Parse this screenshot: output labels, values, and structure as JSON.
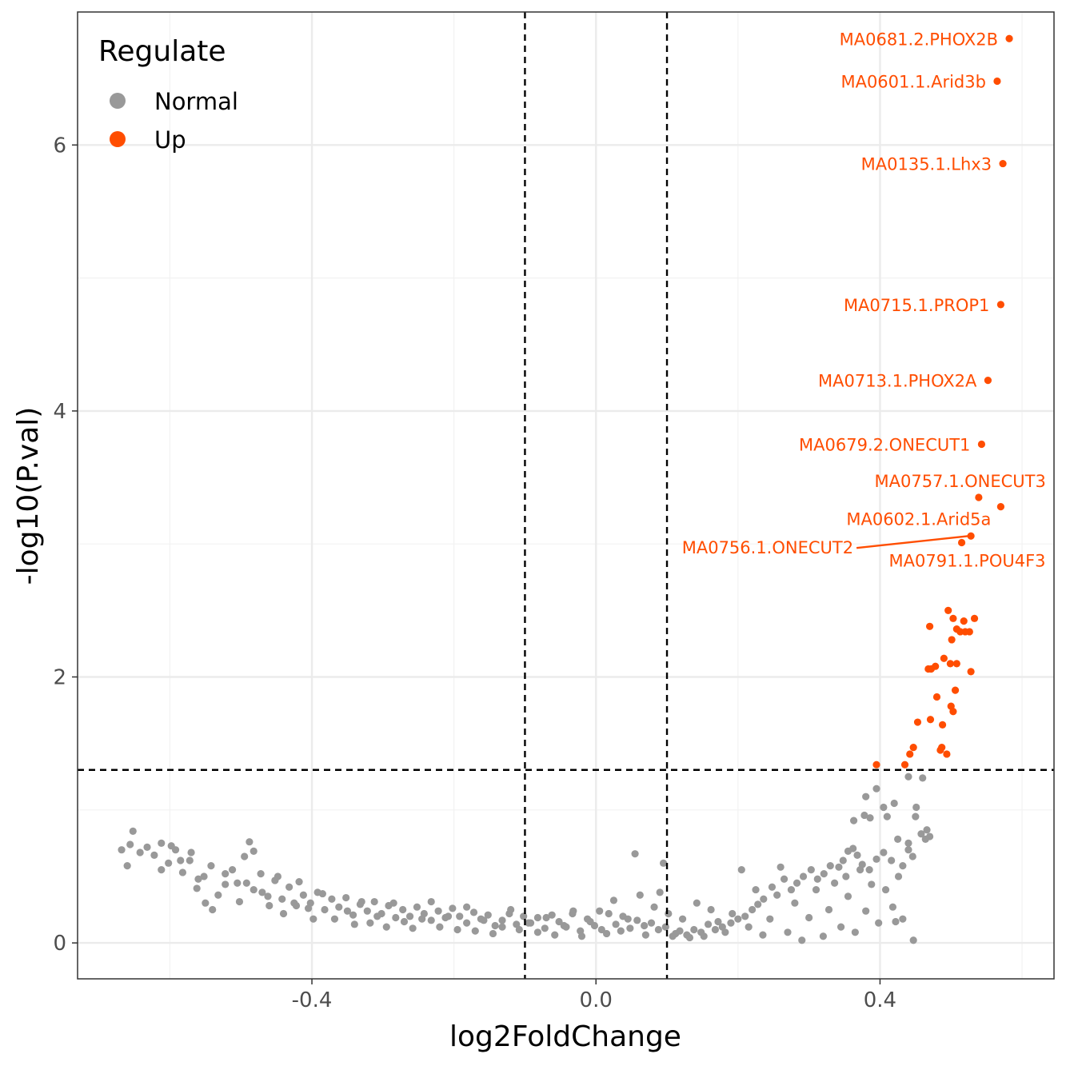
{
  "chart_data": {
    "type": "scatter",
    "title": "",
    "xlabel": "log2FoldChange",
    "ylabel": "-log10(P.val)",
    "xlim": [
      -0.73,
      0.645
    ],
    "ylim": [
      -0.27,
      7.0
    ],
    "x_ticks": [
      -0.4,
      0.0,
      0.4
    ],
    "x_tick_labels": [
      "-0.4",
      "0.0",
      "0.4"
    ],
    "y_ticks": [
      0,
      2,
      4,
      6
    ],
    "y_tick_labels": [
      "0",
      "2",
      "4",
      "6"
    ],
    "grid": true,
    "thresholds": {
      "log2fc": [
        -0.1,
        0.1
      ],
      "neg_log10_p": 1.301
    },
    "legend": {
      "title": "Regulate",
      "placement": "top-left",
      "entries": [
        {
          "label": "Normal",
          "color": "#999999"
        },
        {
          "label": "Up",
          "color": "#FF4D00"
        }
      ]
    },
    "colors": {
      "Normal": "#999999",
      "Up": "#FF4D00"
    },
    "labeled_points": [
      {
        "label": "MA0681.2.PHOX2B",
        "x": 0.582,
        "y": 6.8
      },
      {
        "label": "MA0601.1.Arid3b",
        "x": 0.565,
        "y": 6.48
      },
      {
        "label": "MA0135.1.Lhx3",
        "x": 0.573,
        "y": 5.86
      },
      {
        "label": "MA0715.1.PROP1",
        "x": 0.57,
        "y": 4.8
      },
      {
        "label": "MA0713.1.PHOX2A",
        "x": 0.552,
        "y": 4.23
      },
      {
        "label": "MA0679.2.ONECUT1",
        "x": 0.543,
        "y": 3.75
      },
      {
        "label": "MA0757.1.ONECUT3",
        "x": 0.539,
        "y": 3.35
      },
      {
        "label": "MA0602.1.Arid5a",
        "x": 0.57,
        "y": 3.28
      },
      {
        "label": "MA0756.1.ONECUT2",
        "x": 0.528,
        "y": 3.06
      },
      {
        "label": "MA0791.1.POU4F3",
        "x": 0.515,
        "y": 3.01
      }
    ],
    "up_points": [
      [
        0.496,
        2.5
      ],
      [
        0.503,
        2.44
      ],
      [
        0.533,
        2.44
      ],
      [
        0.518,
        2.42
      ],
      [
        0.47,
        2.38
      ],
      [
        0.508,
        2.36
      ],
      [
        0.52,
        2.34
      ],
      [
        0.513,
        2.34
      ],
      [
        0.526,
        2.34
      ],
      [
        0.501,
        2.28
      ],
      [
        0.49,
        2.14
      ],
      [
        0.499,
        2.1
      ],
      [
        0.508,
        2.1
      ],
      [
        0.478,
        2.08
      ],
      [
        0.472,
        2.06
      ],
      [
        0.468,
        2.06
      ],
      [
        0.528,
        2.04
      ],
      [
        0.506,
        1.9
      ],
      [
        0.48,
        1.85
      ],
      [
        0.5,
        1.78
      ],
      [
        0.503,
        1.74
      ],
      [
        0.471,
        1.68
      ],
      [
        0.488,
        1.64
      ],
      [
        0.453,
        1.66
      ],
      [
        0.447,
        1.47
      ],
      [
        0.487,
        1.47
      ],
      [
        0.485,
        1.45
      ],
      [
        0.494,
        1.42
      ],
      [
        0.442,
        1.42
      ],
      [
        0.435,
        1.34
      ],
      [
        0.395,
        1.34
      ]
    ],
    "normal_points_note_free": true,
    "normal_points": [
      [
        0.447,
        0.02
      ],
      [
        0.432,
        0.18
      ],
      [
        0.422,
        0.16
      ],
      [
        0.466,
        0.85
      ],
      [
        0.47,
        0.8
      ],
      [
        0.458,
        0.82
      ],
      [
        0.464,
        0.78
      ],
      [
        0.45,
        0.95
      ],
      [
        0.451,
        1.02
      ],
      [
        0.44,
        1.25
      ],
      [
        0.46,
        1.24
      ],
      [
        0.395,
        1.16
      ],
      [
        0.405,
        1.02
      ],
      [
        0.41,
        0.95
      ],
      [
        0.378,
        0.96
      ],
      [
        0.363,
        0.92
      ],
      [
        0.38,
        1.1
      ],
      [
        0.42,
        1.05
      ],
      [
        0.386,
        0.94
      ],
      [
        0.395,
        0.63
      ],
      [
        0.405,
        0.68
      ],
      [
        0.416,
        0.62
      ],
      [
        0.425,
        0.78
      ],
      [
        0.44,
        0.75
      ],
      [
        0.432,
        0.58
      ],
      [
        0.44,
        0.7
      ],
      [
        0.446,
        0.65
      ],
      [
        0.362,
        0.71
      ],
      [
        0.368,
        0.66
      ],
      [
        0.355,
        0.69
      ],
      [
        0.348,
        0.62
      ],
      [
        0.375,
        0.59
      ],
      [
        0.385,
        0.55
      ],
      [
        0.342,
        0.57
      ],
      [
        0.352,
        0.5
      ],
      [
        0.33,
        0.58
      ],
      [
        0.321,
        0.52
      ],
      [
        0.312,
        0.48
      ],
      [
        0.303,
        0.55
      ],
      [
        0.292,
        0.5
      ],
      [
        0.283,
        0.45
      ],
      [
        0.275,
        0.4
      ],
      [
        0.265,
        0.48
      ],
      [
        0.255,
        0.36
      ],
      [
        0.248,
        0.42
      ],
      [
        0.236,
        0.33
      ],
      [
        0.228,
        0.29
      ],
      [
        0.22,
        0.25
      ],
      [
        0.21,
        0.2
      ],
      [
        0.2,
        0.18
      ],
      [
        0.19,
        0.15
      ],
      [
        0.178,
        0.12
      ],
      [
        0.168,
        0.1
      ],
      [
        0.158,
        0.14
      ],
      [
        0.148,
        0.08
      ],
      [
        0.138,
        0.1
      ],
      [
        0.128,
        0.06
      ],
      [
        0.118,
        0.09
      ],
      [
        0.108,
        0.05
      ],
      [
        0.098,
        0.12
      ],
      [
        0.088,
        0.1
      ],
      [
        0.078,
        0.15
      ],
      [
        0.068,
        0.13
      ],
      [
        0.058,
        0.17
      ],
      [
        0.048,
        0.11
      ],
      [
        0.038,
        0.2
      ],
      [
        0.028,
        0.14
      ],
      [
        0.018,
        0.22
      ],
      [
        0.008,
        0.1
      ],
      [
        -0.002,
        0.13
      ],
      [
        -0.012,
        0.18
      ],
      [
        -0.022,
        0.09
      ],
      [
        -0.032,
        0.24
      ],
      [
        -0.042,
        0.12
      ],
      [
        -0.052,
        0.16
      ],
      [
        -0.062,
        0.21
      ],
      [
        -0.072,
        0.11
      ],
      [
        -0.082,
        0.19
      ],
      [
        -0.092,
        0.15
      ],
      [
        -0.102,
        0.2
      ],
      [
        -0.112,
        0.14
      ],
      [
        -0.122,
        0.22
      ],
      [
        -0.132,
        0.17
      ],
      [
        -0.142,
        0.13
      ],
      [
        -0.152,
        0.21
      ],
      [
        -0.162,
        0.18
      ],
      [
        -0.172,
        0.23
      ],
      [
        -0.182,
        0.15
      ],
      [
        -0.192,
        0.2
      ],
      [
        -0.202,
        0.26
      ],
      [
        -0.212,
        0.19
      ],
      [
        -0.222,
        0.24
      ],
      [
        -0.232,
        0.17
      ],
      [
        -0.242,
        0.22
      ],
      [
        -0.252,
        0.27
      ],
      [
        -0.262,
        0.2
      ],
      [
        -0.272,
        0.25
      ],
      [
        -0.282,
        0.19
      ],
      [
        -0.292,
        0.28
      ],
      [
        -0.302,
        0.22
      ],
      [
        -0.312,
        0.31
      ],
      [
        -0.322,
        0.24
      ],
      [
        -0.332,
        0.29
      ],
      [
        -0.342,
        0.21
      ],
      [
        -0.352,
        0.34
      ],
      [
        -0.362,
        0.27
      ],
      [
        -0.372,
        0.33
      ],
      [
        -0.382,
        0.25
      ],
      [
        -0.392,
        0.38
      ],
      [
        -0.402,
        0.3
      ],
      [
        -0.412,
        0.36
      ],
      [
        -0.422,
        0.28
      ],
      [
        -0.432,
        0.42
      ],
      [
        -0.442,
        0.33
      ],
      [
        -0.452,
        0.47
      ],
      [
        -0.462,
        0.35
      ],
      [
        -0.472,
        0.52
      ],
      [
        -0.482,
        0.4
      ],
      [
        -0.492,
        0.45
      ],
      [
        -0.502,
        0.31
      ],
      [
        -0.512,
        0.55
      ],
      [
        -0.522,
        0.44
      ],
      [
        -0.532,
        0.36
      ],
      [
        -0.542,
        0.58
      ],
      [
        -0.552,
        0.5
      ],
      [
        -0.562,
        0.41
      ],
      [
        -0.572,
        0.62
      ],
      [
        -0.582,
        0.53
      ],
      [
        -0.592,
        0.7
      ],
      [
        -0.602,
        0.6
      ],
      [
        -0.612,
        0.75
      ],
      [
        -0.622,
        0.66
      ],
      [
        -0.632,
        0.72
      ],
      [
        -0.642,
        0.68
      ],
      [
        -0.652,
        0.84
      ],
      [
        -0.656,
        0.74
      ],
      [
        -0.66,
        0.58
      ],
      [
        -0.668,
        0.7
      ],
      [
        -0.612,
        0.55
      ],
      [
        -0.598,
        0.73
      ],
      [
        -0.585,
        0.62
      ],
      [
        -0.57,
        0.68
      ],
      [
        -0.56,
        0.48
      ],
      [
        -0.55,
        0.3
      ],
      [
        -0.54,
        0.25
      ],
      [
        -0.522,
        0.52
      ],
      [
        -0.505,
        0.45
      ],
      [
        -0.495,
        0.65
      ],
      [
        -0.488,
        0.76
      ],
      [
        -0.482,
        0.69
      ],
      [
        -0.47,
        0.38
      ],
      [
        -0.46,
        0.28
      ],
      [
        -0.448,
        0.5
      ],
      [
        -0.44,
        0.22
      ],
      [
        -0.425,
        0.3
      ],
      [
        -0.418,
        0.46
      ],
      [
        -0.405,
        0.26
      ],
      [
        -0.398,
        0.18
      ],
      [
        -0.385,
        0.37
      ],
      [
        -0.368,
        0.18
      ],
      [
        -0.35,
        0.24
      ],
      [
        -0.34,
        0.14
      ],
      [
        -0.33,
        0.31
      ],
      [
        -0.318,
        0.15
      ],
      [
        -0.308,
        0.2
      ],
      [
        -0.295,
        0.12
      ],
      [
        -0.285,
        0.3
      ],
      [
        -0.27,
        0.16
      ],
      [
        -0.258,
        0.11
      ],
      [
        -0.245,
        0.18
      ],
      [
        -0.232,
        0.31
      ],
      [
        -0.22,
        0.12
      ],
      [
        -0.208,
        0.2
      ],
      [
        -0.195,
        0.1
      ],
      [
        -0.182,
        0.27
      ],
      [
        -0.17,
        0.09
      ],
      [
        -0.158,
        0.17
      ],
      [
        -0.145,
        0.07
      ],
      [
        -0.132,
        0.12
      ],
      [
        -0.12,
        0.25
      ],
      [
        -0.108,
        0.1
      ],
      [
        -0.095,
        0.15
      ],
      [
        -0.082,
        0.08
      ],
      [
        -0.07,
        0.19
      ],
      [
        -0.058,
        0.06
      ],
      [
        -0.045,
        0.13
      ],
      [
        -0.033,
        0.22
      ],
      [
        -0.02,
        0.05
      ],
      [
        -0.008,
        0.16
      ],
      [
        0.005,
        0.24
      ],
      [
        0.015,
        0.07
      ],
      [
        0.025,
        0.32
      ],
      [
        0.035,
        0.09
      ],
      [
        0.045,
        0.18
      ],
      [
        0.055,
        0.67
      ],
      [
        0.062,
        0.36
      ],
      [
        0.07,
        0.06
      ],
      [
        0.082,
        0.27
      ],
      [
        0.09,
        0.38
      ],
      [
        0.095,
        0.6
      ],
      [
        0.102,
        0.22
      ],
      [
        0.112,
        0.07
      ],
      [
        0.122,
        0.18
      ],
      [
        0.132,
        0.04
      ],
      [
        0.142,
        0.3
      ],
      [
        0.152,
        0.05
      ],
      [
        0.162,
        0.25
      ],
      [
        0.172,
        0.16
      ],
      [
        0.182,
        0.08
      ],
      [
        0.192,
        0.22
      ],
      [
        0.205,
        0.55
      ],
      [
        0.215,
        0.12
      ],
      [
        0.225,
        0.4
      ],
      [
        0.235,
        0.06
      ],
      [
        0.245,
        0.18
      ],
      [
        0.26,
        0.57
      ],
      [
        0.27,
        0.08
      ],
      [
        0.28,
        0.3
      ],
      [
        0.29,
        0.02
      ],
      [
        0.3,
        0.19
      ],
      [
        0.31,
        0.4
      ],
      [
        0.32,
        0.05
      ],
      [
        0.328,
        0.25
      ],
      [
        0.336,
        0.45
      ],
      [
        0.345,
        0.12
      ],
      [
        0.355,
        0.35
      ],
      [
        0.365,
        0.08
      ],
      [
        0.372,
        0.55
      ],
      [
        0.38,
        0.24
      ],
      [
        0.388,
        0.44
      ],
      [
        0.398,
        0.15
      ],
      [
        0.408,
        0.4
      ],
      [
        0.418,
        0.27
      ],
      [
        0.426,
        0.5
      ]
    ]
  }
}
